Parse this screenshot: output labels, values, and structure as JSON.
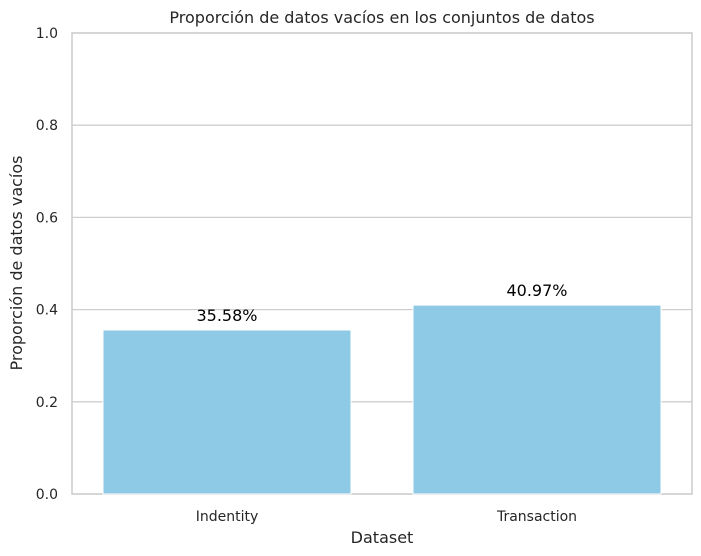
{
  "chart_data": {
    "type": "bar",
    "title": "Proporción de datos vacíos en los conjuntos de datos",
    "xlabel": "Dataset",
    "ylabel": "Proporción de datos vacíos",
    "categories": [
      "Indentity",
      "Transaction"
    ],
    "values": [
      0.3558,
      0.4097
    ],
    "data_labels": [
      "35.58%",
      "40.97%"
    ],
    "ylim": [
      0,
      1
    ],
    "yticks": [
      "0.0",
      "0.2",
      "0.4",
      "0.6",
      "0.8",
      "1.0"
    ],
    "grid": "horizontal",
    "colors": {
      "bar": "#8ecae6",
      "grid": "#cfcfcf",
      "frame": "#cccccc"
    }
  }
}
